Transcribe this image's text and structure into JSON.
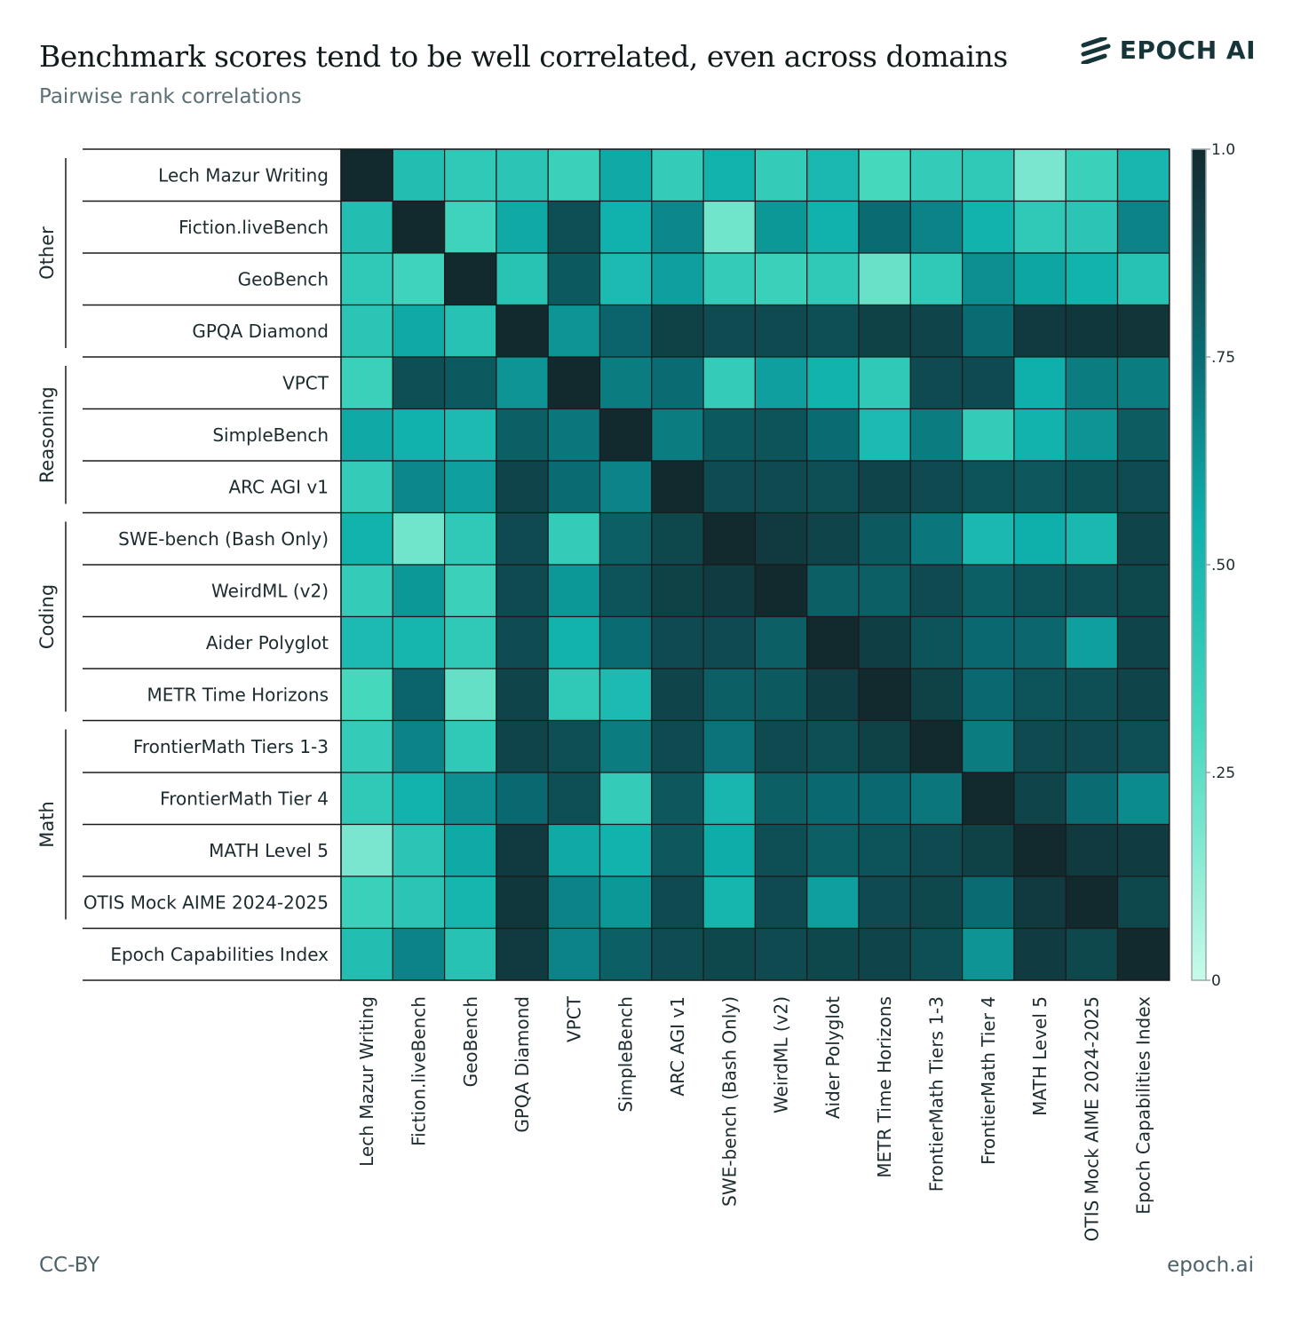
{
  "header": {
    "title": "Benchmark scores tend to be well correlated, even across domains",
    "subtitle": "Pairwise rank correlations",
    "brand": "EPOCH AI"
  },
  "footer": {
    "license": "CC-BY",
    "site": "epoch.ai"
  },
  "colors": {
    "low": "#c8fbe9",
    "mid_low": "#46d8bd",
    "mid": "#0fb0ac",
    "mid_high": "#0a6c73",
    "high": "#122a2e"
  },
  "chart_data": {
    "type": "heatmap",
    "title": "Benchmark scores tend to be well correlated, even across domains",
    "subtitle": "Pairwise rank correlations",
    "labels": [
      "Lech Mazur Writing",
      "Fiction.liveBench",
      "GeoBench",
      "GPQA Diamond",
      "VPCT",
      "SimpleBench",
      "ARC AGI v1",
      "SWE-bench (Bash Only)",
      "WeirdML (v2)",
      "Aider Polyglot",
      "METR Time Horizons",
      "FrontierMath Tiers 1-3",
      "FrontierMath Tier 4",
      "MATH Level 5",
      "OTIS Mock AIME 2024-2025",
      "Epoch Capabilities Index"
    ],
    "groups": [
      {
        "name": "Other",
        "rows": [
          0,
          3
        ]
      },
      {
        "name": "Reasoning",
        "rows": [
          4,
          6
        ]
      },
      {
        "name": "Coding",
        "rows": [
          7,
          10
        ]
      },
      {
        "name": "Math",
        "rows": [
          11,
          14
        ]
      }
    ],
    "values": [
      [
        1.0,
        0.46,
        0.4,
        0.42,
        0.35,
        0.57,
        0.38,
        0.53,
        0.38,
        0.5,
        0.3,
        0.38,
        0.4,
        0.18,
        0.35,
        0.51
      ],
      [
        0.46,
        1.0,
        0.33,
        0.57,
        0.86,
        0.54,
        0.67,
        0.2,
        0.62,
        0.54,
        0.75,
        0.68,
        0.53,
        0.4,
        0.42,
        0.68
      ],
      [
        0.4,
        0.33,
        1.0,
        0.43,
        0.82,
        0.49,
        0.6,
        0.38,
        0.35,
        0.4,
        0.22,
        0.4,
        0.65,
        0.58,
        0.53,
        0.44
      ],
      [
        0.42,
        0.57,
        0.44,
        1.0,
        0.63,
        0.78,
        0.91,
        0.87,
        0.88,
        0.86,
        0.91,
        0.9,
        0.75,
        0.94,
        0.95,
        0.96
      ],
      [
        0.35,
        0.86,
        0.82,
        0.63,
        1.0,
        0.7,
        0.75,
        0.38,
        0.6,
        0.53,
        0.4,
        0.88,
        0.88,
        0.55,
        0.7,
        0.7
      ],
      [
        0.57,
        0.54,
        0.49,
        0.8,
        0.72,
        1.0,
        0.7,
        0.82,
        0.84,
        0.75,
        0.49,
        0.7,
        0.38,
        0.53,
        0.63,
        0.81
      ],
      [
        0.38,
        0.67,
        0.6,
        0.9,
        0.75,
        0.68,
        1.0,
        0.87,
        0.88,
        0.86,
        0.9,
        0.88,
        0.84,
        0.83,
        0.85,
        0.87
      ],
      [
        0.53,
        0.2,
        0.4,
        0.88,
        0.38,
        0.8,
        0.89,
        1.0,
        0.94,
        0.9,
        0.82,
        0.72,
        0.5,
        0.55,
        0.5,
        0.9
      ],
      [
        0.38,
        0.62,
        0.35,
        0.88,
        0.62,
        0.84,
        0.91,
        0.93,
        1.0,
        0.8,
        0.8,
        0.88,
        0.8,
        0.84,
        0.86,
        0.89
      ],
      [
        0.49,
        0.52,
        0.4,
        0.87,
        0.53,
        0.75,
        0.88,
        0.88,
        0.8,
        1.0,
        0.92,
        0.84,
        0.76,
        0.77,
        0.6,
        0.9
      ],
      [
        0.3,
        0.78,
        0.23,
        0.9,
        0.4,
        0.49,
        0.9,
        0.8,
        0.82,
        0.92,
        1.0,
        0.91,
        0.76,
        0.84,
        0.86,
        0.9
      ],
      [
        0.38,
        0.68,
        0.4,
        0.9,
        0.86,
        0.7,
        0.88,
        0.73,
        0.88,
        0.86,
        0.91,
        1.0,
        0.7,
        0.88,
        0.88,
        0.86
      ],
      [
        0.4,
        0.53,
        0.65,
        0.76,
        0.86,
        0.38,
        0.83,
        0.51,
        0.8,
        0.76,
        0.76,
        0.72,
        1.0,
        0.9,
        0.75,
        0.66
      ],
      [
        0.18,
        0.42,
        0.57,
        0.94,
        0.57,
        0.53,
        0.83,
        0.56,
        0.86,
        0.8,
        0.84,
        0.88,
        0.91,
        1.0,
        0.94,
        0.93
      ],
      [
        0.35,
        0.42,
        0.52,
        0.95,
        0.68,
        0.62,
        0.88,
        0.52,
        0.88,
        0.6,
        0.88,
        0.89,
        0.75,
        0.94,
        1.0,
        0.89
      ],
      [
        0.46,
        0.68,
        0.44,
        0.94,
        0.68,
        0.8,
        0.87,
        0.89,
        0.88,
        0.89,
        0.9,
        0.86,
        0.63,
        0.93,
        0.89,
        1.0
      ]
    ],
    "colorbar": {
      "min": 0,
      "max": 1,
      "ticks": [
        {
          "value": 1.0,
          "label": "1.0"
        },
        {
          "value": 0.75,
          "label": ".75"
        },
        {
          "value": 0.5,
          "label": ".50"
        },
        {
          "value": 0.25,
          "label": ".25"
        },
        {
          "value": 0.0,
          "label": "0"
        }
      ]
    }
  }
}
